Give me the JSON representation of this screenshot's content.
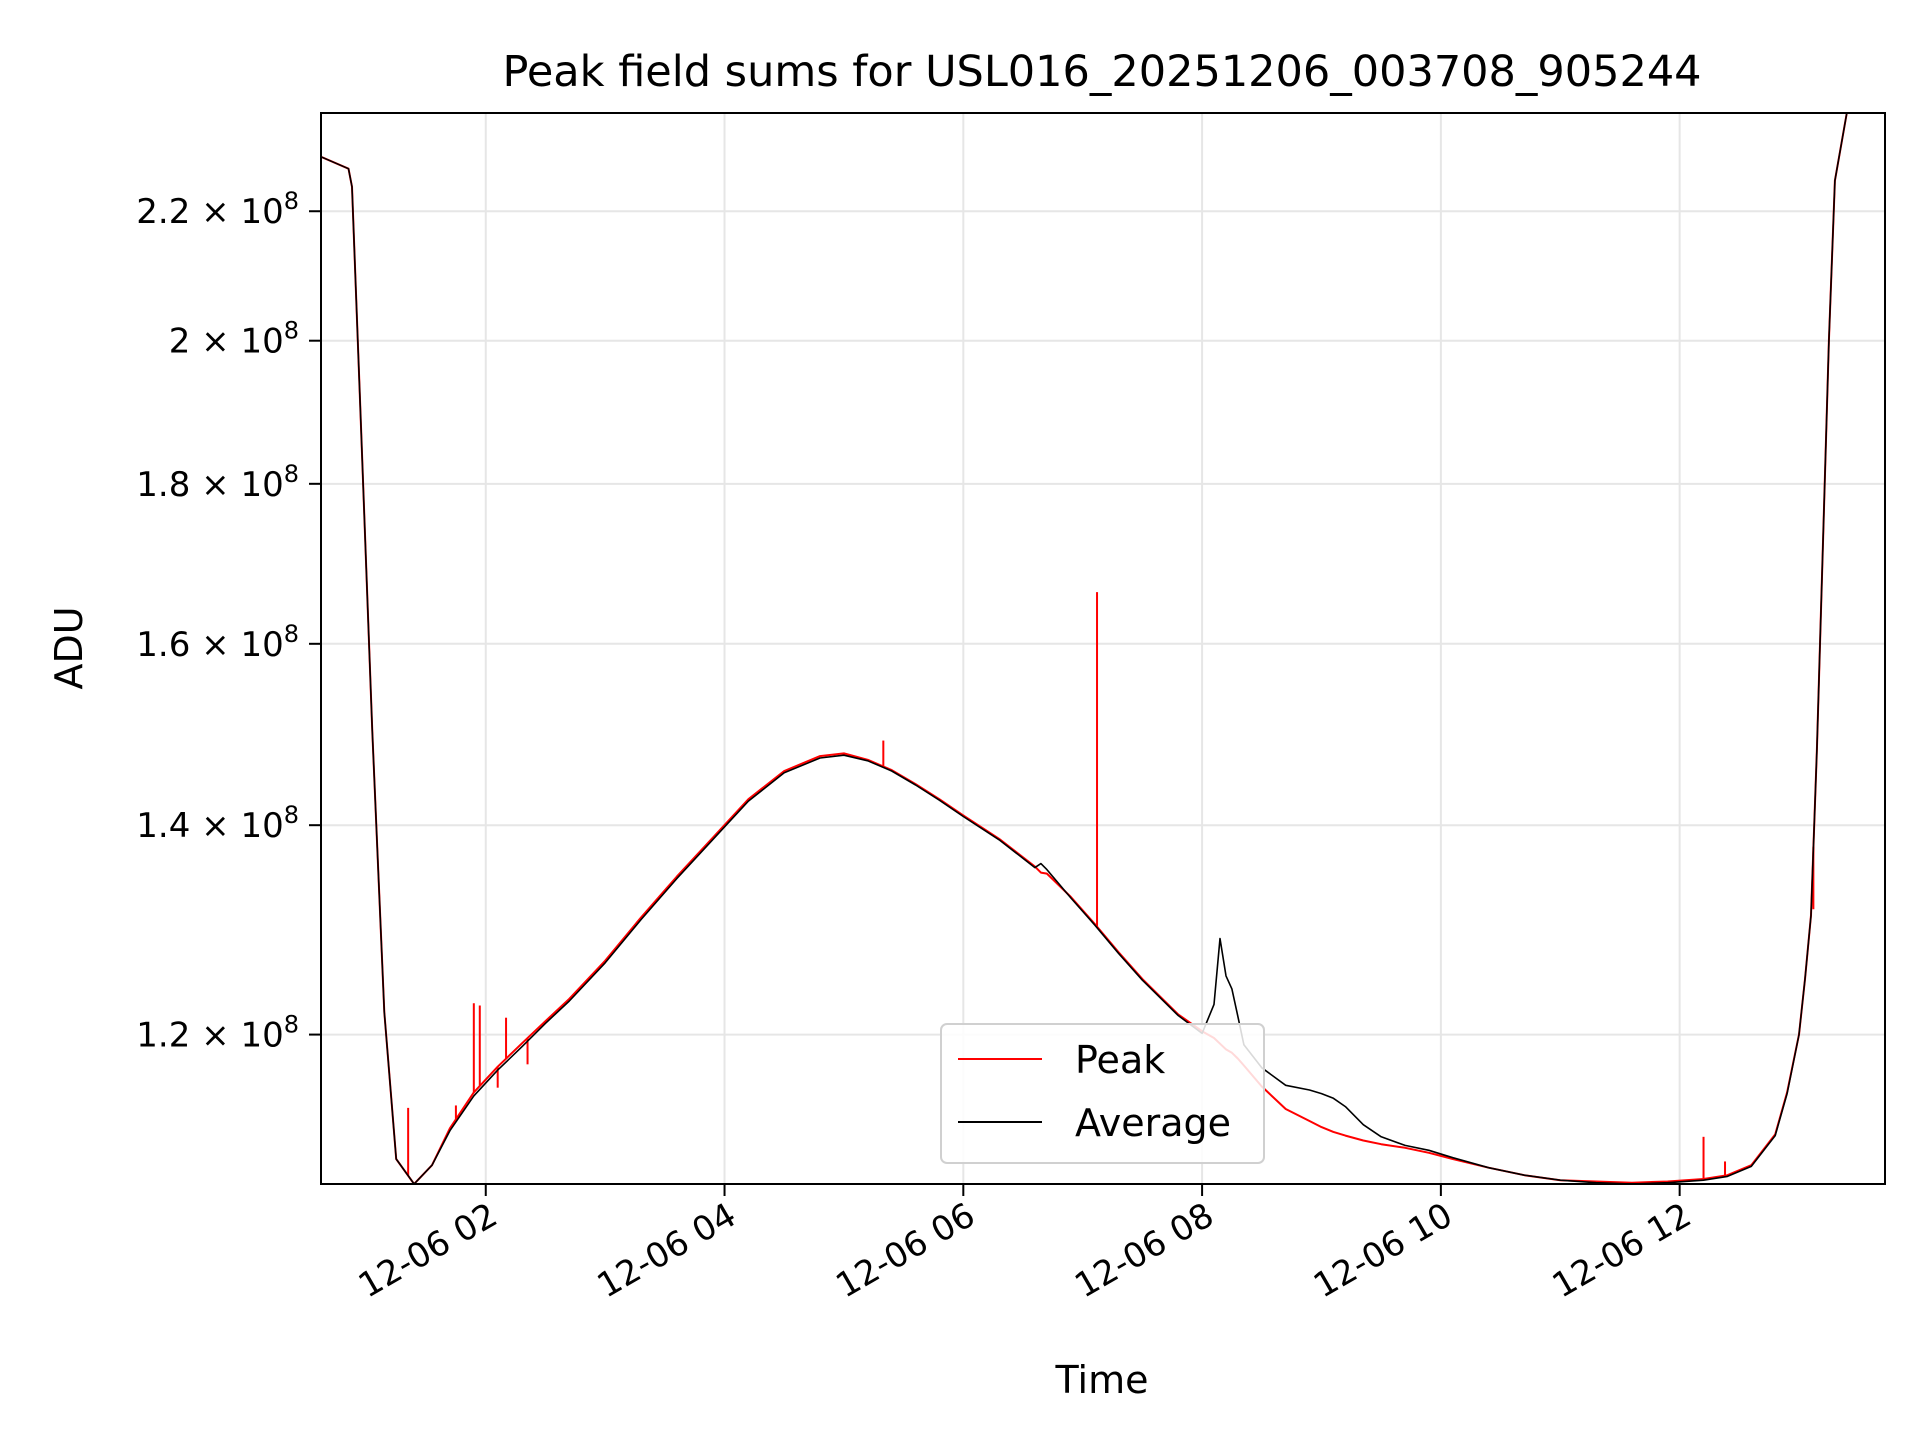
{
  "chart_data": {
    "type": "line",
    "title": "Peak field sums for USL016_20251206_003708_905244",
    "xlabel": "Time",
    "ylabel": "ADU",
    "x_unit": "hours (time of day on 12-06)",
    "xlim": [
      0.62,
      13.72
    ],
    "ylim": [
      107500000,
      236500000
    ],
    "y_scale": "log",
    "grid": true,
    "legend_position": "lower-center",
    "x_ticks": [
      {
        "value": 2,
        "label": "12-06 02"
      },
      {
        "value": 4,
        "label": "12-06 04"
      },
      {
        "value": 6,
        "label": "12-06 06"
      },
      {
        "value": 8,
        "label": "12-06 08"
      },
      {
        "value": 10,
        "label": "12-06 10"
      },
      {
        "value": 12,
        "label": "12-06 12"
      }
    ],
    "y_ticks": [
      {
        "value": 120000000,
        "mantissa": "1.2",
        "base": "10",
        "exp": "8"
      },
      {
        "value": 140000000,
        "mantissa": "1.4",
        "base": "10",
        "exp": "8"
      },
      {
        "value": 160000000,
        "mantissa": "1.6",
        "base": "10",
        "exp": "8"
      },
      {
        "value": 180000000,
        "mantissa": "1.8",
        "base": "10",
        "exp": "8"
      },
      {
        "value": 200000000,
        "mantissa": "2",
        "base": "10",
        "exp": "8"
      },
      {
        "value": 220000000,
        "mantissa": "2.2",
        "base": "10",
        "exp": "8"
      }
    ],
    "series": [
      {
        "name": "Peak",
        "color": "#ff0000",
        "x": [
          0.62,
          0.85,
          0.88,
          0.95,
          1.05,
          1.15,
          1.25,
          1.4,
          1.55,
          1.7,
          1.9,
          2.1,
          2.3,
          2.5,
          2.7,
          3.0,
          3.3,
          3.6,
          3.9,
          4.2,
          4.5,
          4.8,
          5.0,
          5.2,
          5.4,
          5.6,
          5.8,
          6.0,
          6.3,
          6.6,
          6.65,
          6.7,
          6.9,
          7.1,
          7.3,
          7.5,
          7.8,
          8.0,
          8.1,
          8.15,
          8.2,
          8.25,
          8.3,
          8.35,
          8.5,
          8.7,
          8.9,
          9.0,
          9.1,
          9.2,
          9.35,
          9.5,
          9.7,
          9.9,
          10.1,
          10.4,
          10.7,
          11.0,
          11.3,
          11.6,
          11.9,
          12.2,
          12.4,
          12.6,
          12.8,
          12.9,
          13.0,
          13.05,
          13.1,
          13.15,
          13.2,
          13.25,
          13.3,
          13.4,
          13.5,
          13.6,
          13.72
        ],
        "values": [
          229000000,
          227000000,
          224000000,
          190000000,
          150000000,
          122000000,
          109500000,
          107500000,
          109000000,
          112000000,
          115000000,
          117200000,
          119200000,
          121200000,
          123200000,
          126700000,
          130800000,
          134800000,
          138700000,
          142700000,
          145700000,
          147300000,
          147600000,
          146900000,
          145800000,
          144300000,
          142700000,
          141000000,
          138600000,
          135800000,
          135200000,
          135100000,
          132800000,
          130200000,
          127500000,
          125000000,
          121800000,
          120300000,
          119700000,
          119200000,
          118700000,
          118400000,
          117900000,
          117300000,
          115500000,
          113600000,
          112600000,
          112100000,
          111700000,
          111400000,
          111000000,
          110700000,
          110400000,
          110000000,
          109500000,
          108800000,
          108200000,
          107800000,
          107700000,
          107600000,
          107700000,
          107900000,
          108200000,
          109000000,
          111500000,
          115000000,
          120000000,
          125000000,
          131000000,
          148000000,
          172000000,
          200000000,
          225000000,
          236500000,
          236500000,
          236500000,
          236500000
        ],
        "spikes": [
          {
            "x": 1.9,
            "value": 122800000
          },
          {
            "x": 1.95,
            "value": 122600000
          },
          {
            "x": 2.17,
            "value": 121500000
          },
          {
            "x": 1.35,
            "value": 113700000
          },
          {
            "x": 1.75,
            "value": 113900000
          },
          {
            "x": 2.1,
            "value": 115400000
          },
          {
            "x": 2.35,
            "value": 117400000
          },
          {
            "x": 5.33,
            "value": 149000000
          },
          {
            "x": 7.12,
            "value": 166200000
          },
          {
            "x": 12.2,
            "value": 111300000
          },
          {
            "x": 12.38,
            "value": 109300000
          },
          {
            "x": 13.12,
            "value": 131600000
          }
        ]
      },
      {
        "name": "Average",
        "color": "#000000",
        "x": [
          0.62,
          0.85,
          0.88,
          0.95,
          1.05,
          1.15,
          1.25,
          1.4,
          1.55,
          1.7,
          1.9,
          2.1,
          2.3,
          2.5,
          2.7,
          3.0,
          3.3,
          3.6,
          3.9,
          4.2,
          4.5,
          4.8,
          5.0,
          5.2,
          5.4,
          5.6,
          5.8,
          6.0,
          6.3,
          6.6,
          6.65,
          6.7,
          6.9,
          7.1,
          7.3,
          7.5,
          7.8,
          8.0,
          8.1,
          8.15,
          8.2,
          8.25,
          8.3,
          8.35,
          8.5,
          8.7,
          8.9,
          9.0,
          9.1,
          9.2,
          9.35,
          9.5,
          9.7,
          9.9,
          10.1,
          10.4,
          10.7,
          11.0,
          11.3,
          11.6,
          11.9,
          12.2,
          12.4,
          12.6,
          12.8,
          12.9,
          13.0,
          13.05,
          13.1,
          13.15,
          13.2,
          13.25,
          13.3,
          13.4,
          13.5,
          13.6,
          13.72
        ],
        "values": [
          229000000,
          227000000,
          224000000,
          190000000,
          150000000,
          122000000,
          109500000,
          107500000,
          109000000,
          111800000,
          114700000,
          116900000,
          118900000,
          121000000,
          123000000,
          126500000,
          130600000,
          134600000,
          138500000,
          142500000,
          145500000,
          147100000,
          147400000,
          146800000,
          145700000,
          144200000,
          142600000,
          140900000,
          138500000,
          135700000,
          136100000,
          135500000,
          132700000,
          130100000,
          127400000,
          124900000,
          121700000,
          120100000,
          122700000,
          128800000,
          125300000,
          124100000,
          121600000,
          119100000,
          117100000,
          115600000,
          115200000,
          114900000,
          114500000,
          113800000,
          112300000,
          111300000,
          110600000,
          110200000,
          109600000,
          108800000,
          108200000,
          107800000,
          107600000,
          107500000,
          107600000,
          107800000,
          108100000,
          108900000,
          111400000,
          114900000,
          120000000,
          125000000,
          131000000,
          148000000,
          172000000,
          200000000,
          225000000,
          236500000,
          236500000,
          236500000,
          236500000
        ]
      }
    ]
  }
}
